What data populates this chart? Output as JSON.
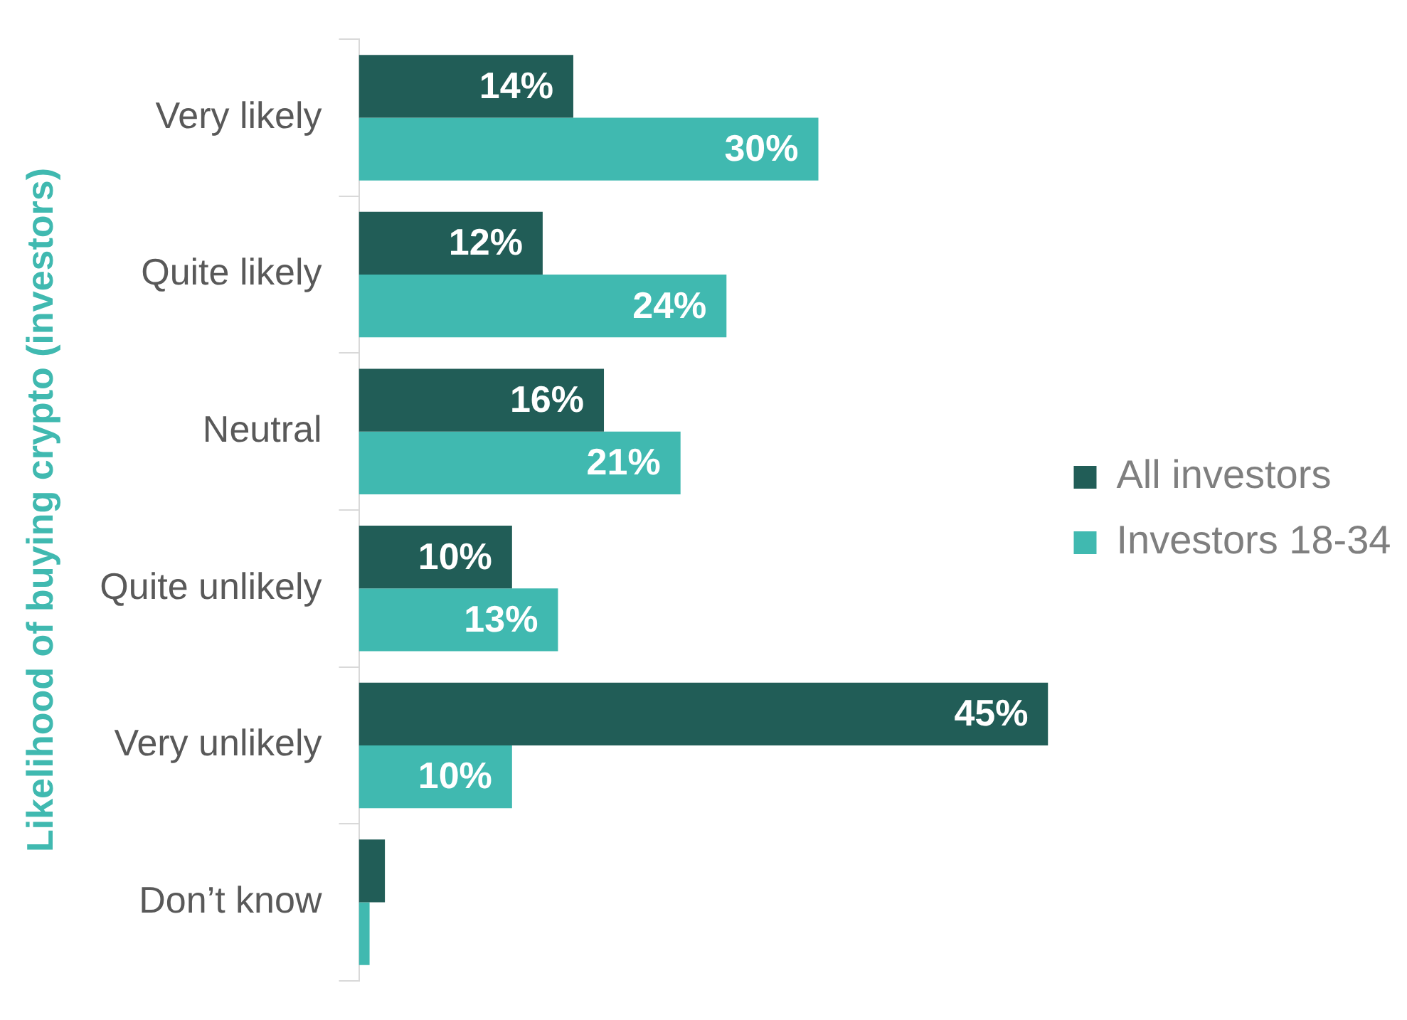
{
  "chart_data": {
    "type": "bar",
    "orientation": "horizontal",
    "ylabel": "Likelihood of buying crypto (investors)",
    "categories": [
      "Very likely",
      "Quite likely",
      "Neutral",
      "Quite unlikely",
      "Very unlikely",
      "Don’t know"
    ],
    "series": [
      {
        "name": "All investors",
        "color": "#215d57",
        "values": [
          14,
          12,
          16,
          10,
          45,
          1.7
        ],
        "value_labels": [
          "14%",
          "12%",
          "16%",
          "10%",
          "45%",
          null
        ]
      },
      {
        "name": "Investors 18-34",
        "color": "#40b9b0",
        "values": [
          30,
          24,
          21,
          13,
          10,
          0.7
        ],
        "value_labels": [
          "30%",
          "24%",
          "21%",
          "13%",
          "10%",
          null
        ]
      }
    ],
    "legend": "right",
    "grid": false
  }
}
